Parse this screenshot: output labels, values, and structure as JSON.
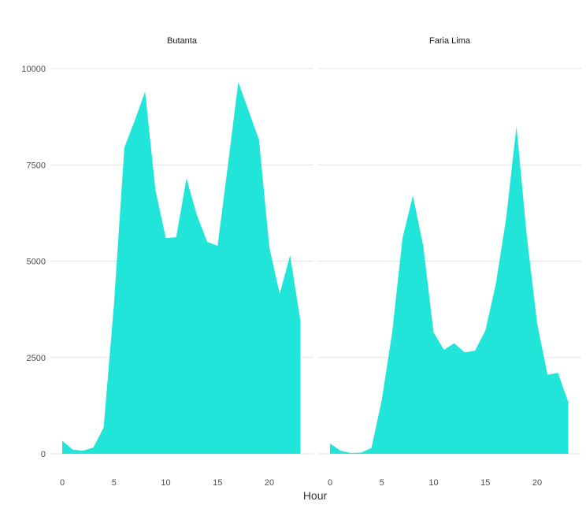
{
  "chart_data": {
    "type": "area",
    "xlabel": "Hour",
    "ylabel": "",
    "xlim": [
      0,
      23
    ],
    "ylim": [
      0,
      10000
    ],
    "x_ticks": [
      0,
      5,
      10,
      15,
      20
    ],
    "y_ticks": [
      0,
      2500,
      5000,
      7500,
      10000
    ],
    "y_tick_labels": [
      "0",
      "2500",
      "5000",
      "7500",
      "10000"
    ],
    "grid": true,
    "fill_color": "#22e5da",
    "x": [
      0,
      1,
      2,
      3,
      4,
      5,
      6,
      7,
      8,
      9,
      10,
      11,
      12,
      13,
      14,
      15,
      16,
      17,
      18,
      19,
      20,
      21,
      22,
      23
    ],
    "panels": [
      {
        "name": "Butanta",
        "values": [
          340,
          110,
          80,
          160,
          680,
          3900,
          7950,
          8650,
          9400,
          6850,
          5600,
          5620,
          7150,
          6200,
          5500,
          5400,
          7500,
          9650,
          8900,
          8150,
          5350,
          4150,
          5150,
          3450
        ]
      },
      {
        "name": "Faria Lima",
        "values": [
          270,
          80,
          20,
          30,
          150,
          1400,
          3150,
          5600,
          6700,
          5400,
          3150,
          2700,
          2870,
          2630,
          2680,
          3200,
          4400,
          6100,
          8500,
          5650,
          3380,
          2050,
          2100,
          1350
        ]
      }
    ]
  }
}
